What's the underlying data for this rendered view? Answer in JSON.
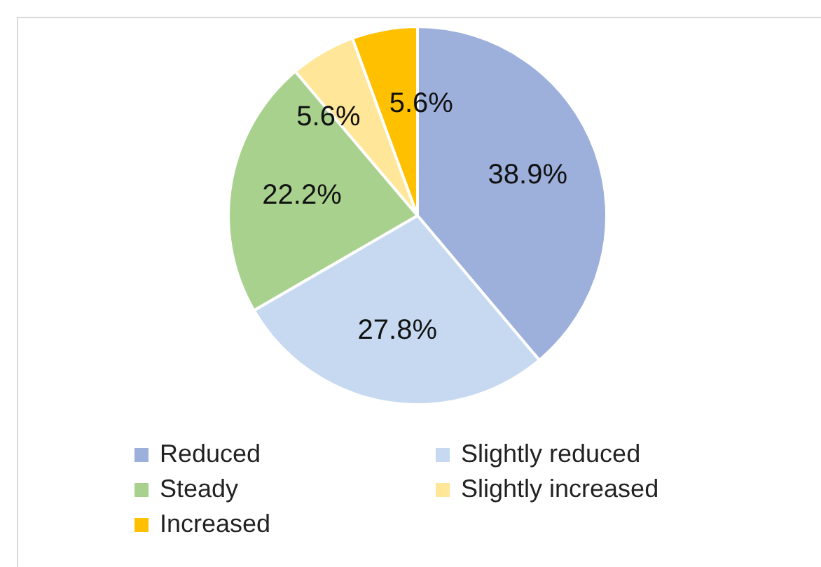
{
  "chart_data": {
    "type": "pie",
    "categories": [
      "Reduced",
      "Slightly reduced",
      "Steady",
      "Slightly increased",
      "Increased"
    ],
    "values": [
      38.9,
      27.8,
      22.2,
      5.6,
      5.6
    ],
    "value_labels": [
      "38.9%",
      "27.8%",
      "22.2%",
      "5.6%",
      "5.6%"
    ],
    "colors": [
      "#9dafdb",
      "#c6d9f0",
      "#a9d18e",
      "#ffe699",
      "#ffc000"
    ],
    "legend": "bottom"
  }
}
